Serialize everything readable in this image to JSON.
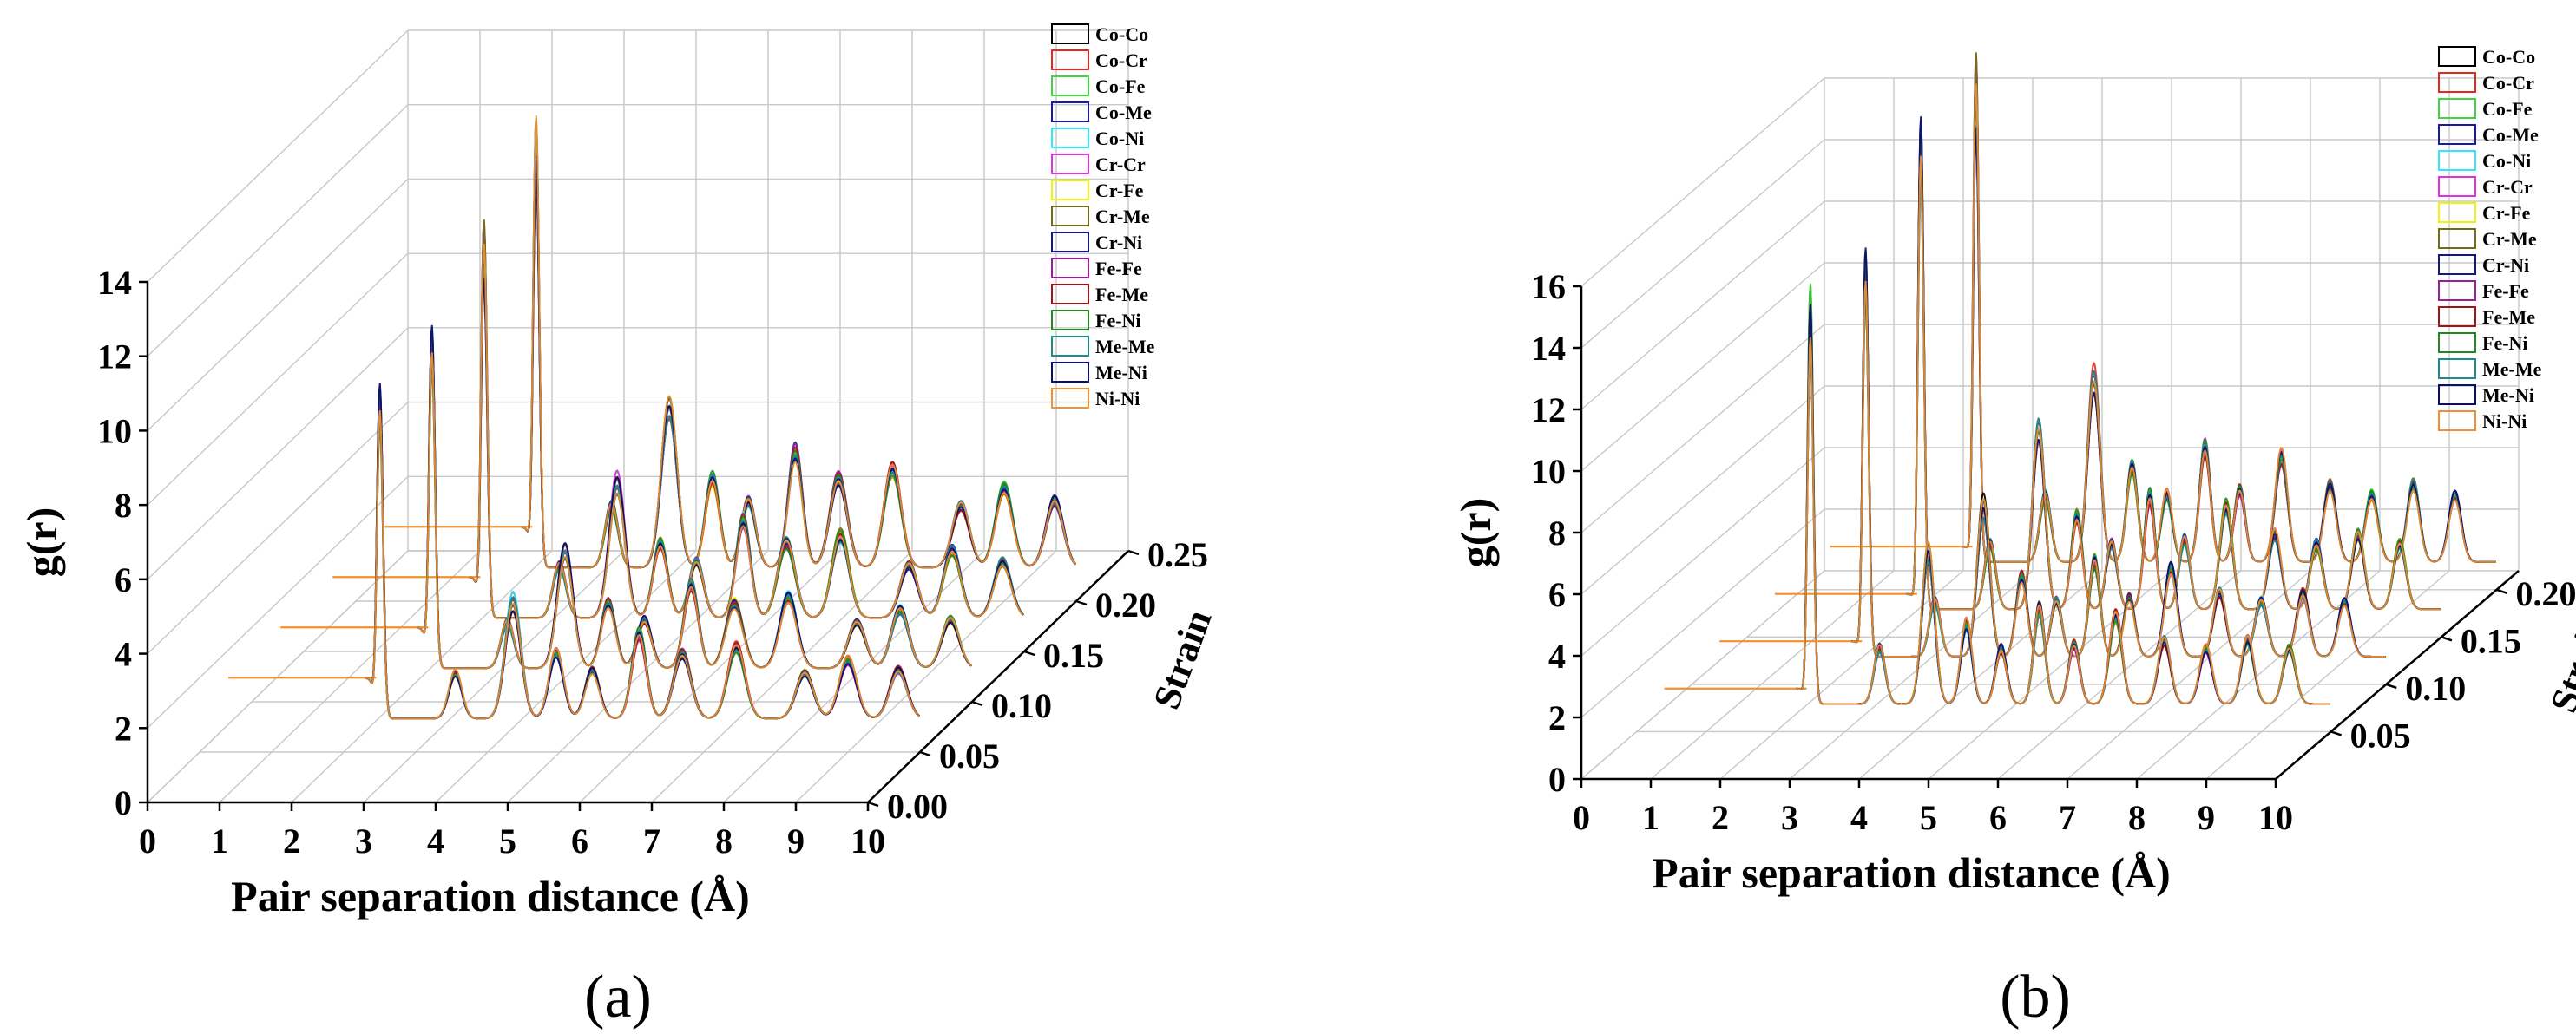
{
  "figure": {
    "captions": [
      "(a)",
      "(b)"
    ]
  },
  "chart_data": [
    {
      "type": "line",
      "subtype": "3d-waterfall",
      "title": "",
      "panel_label": "(a)",
      "xlabel": "Pair separation distance (Å)",
      "ylabel": "g(r)",
      "zlabel": "Strain",
      "xlim": [
        0,
        10
      ],
      "ylim": [
        0,
        14
      ],
      "zlim": [
        0,
        0.25
      ],
      "xticks": [
        "0",
        "1",
        "2",
        "3",
        "4",
        "5",
        "6",
        "7",
        "8",
        "9",
        "10"
      ],
      "yticks": [
        "0",
        "2",
        "4",
        "6",
        "8",
        "10",
        "12",
        "14"
      ],
      "zticks": [
        "0.00",
        "0.05",
        "0.10",
        "0.15",
        "0.20",
        "0.25"
      ],
      "strain_slices": [
        0.05,
        0.1,
        0.15,
        0.2
      ],
      "slice_peak_heights": [
        9.5,
        9.5,
        11,
        13
      ],
      "baseline_offset": 2,
      "peaks": [
        {
          "r": 2.5,
          "h": 1.0,
          "w": 0.045
        },
        {
          "r": 3.55,
          "h": 0.14,
          "w": 0.09
        },
        {
          "r": 4.35,
          "h": 0.36,
          "w": 0.11
        },
        {
          "r": 4.95,
          "h": 0.2,
          "w": 0.1
        },
        {
          "r": 5.45,
          "h": 0.15,
          "w": 0.1
        },
        {
          "r": 6.1,
          "h": 0.26,
          "w": 0.1
        },
        {
          "r": 6.7,
          "h": 0.2,
          "w": 0.12
        },
        {
          "r": 7.45,
          "h": 0.22,
          "w": 0.12
        },
        {
          "r": 8.4,
          "h": 0.14,
          "w": 0.12
        },
        {
          "r": 9.0,
          "h": 0.18,
          "w": 0.12
        },
        {
          "r": 9.7,
          "h": 0.15,
          "w": 0.12
        }
      ],
      "legend": [
        "Co-Co",
        "Co-Cr",
        "Co-Fe",
        "Co-Me",
        "Co-Ni",
        "Cr-Cr",
        "Cr-Fe",
        "Cr-Me",
        "Cr-Ni",
        "Fe-Fe",
        "Fe-Me",
        "Fe-Ni",
        "Me-Me",
        "Me-Ni",
        "Ni-Ni"
      ],
      "legend_placement": "top-right"
    },
    {
      "type": "line",
      "subtype": "3d-waterfall",
      "title": "",
      "panel_label": "(b)",
      "xlabel": "Pair separation distance (Å)",
      "ylabel": "g(r)",
      "zlabel": "Strain",
      "xlim": [
        0,
        10
      ],
      "ylim": [
        0,
        16
      ],
      "zlim": [
        0,
        0.22
      ],
      "xticks": [
        "0",
        "1",
        "2",
        "3",
        "4",
        "5",
        "6",
        "7",
        "8",
        "9",
        "10"
      ],
      "yticks": [
        "0",
        "2",
        "4",
        "6",
        "8",
        "10",
        "12",
        "14",
        "16"
      ],
      "zticks": [
        "0.05",
        "0.10",
        "0.15",
        "0.20"
      ],
      "strain_slices": [
        0.05,
        0.1,
        0.15,
        0.2
      ],
      "slice_peak_heights": [
        14,
        14,
        16.5,
        17
      ],
      "baseline_offset": 1.4,
      "peaks": [
        {
          "r": 2.5,
          "h": 1.0,
          "w": 0.045
        },
        {
          "r": 3.5,
          "h": 0.14,
          "w": 0.08
        },
        {
          "r": 4.2,
          "h": 0.38,
          "w": 0.09
        },
        {
          "r": 4.75,
          "h": 0.2,
          "w": 0.08
        },
        {
          "r": 5.25,
          "h": 0.14,
          "w": 0.08
        },
        {
          "r": 5.8,
          "h": 0.24,
          "w": 0.08
        },
        {
          "r": 6.3,
          "h": 0.15,
          "w": 0.08
        },
        {
          "r": 6.9,
          "h": 0.22,
          "w": 0.09
        },
        {
          "r": 7.6,
          "h": 0.16,
          "w": 0.09
        },
        {
          "r": 8.2,
          "h": 0.14,
          "w": 0.09
        },
        {
          "r": 8.8,
          "h": 0.16,
          "w": 0.09
        },
        {
          "r": 9.4,
          "h": 0.14,
          "w": 0.09
        }
      ],
      "legend": [
        "Co-Co",
        "Co-Cr",
        "Co-Fe",
        "Co-Me",
        "Co-Ni",
        "Cr-Cr",
        "Cr-Fe",
        "Cr-Me",
        "Cr-Ni",
        "Fe-Fe",
        "Fe-Me",
        "Fe-Ni",
        "Me-Me",
        "Me-Ni",
        "Ni-Ni"
      ],
      "legend_placement": "top-right"
    }
  ],
  "series_colors": [
    "#000000",
    "#e8281e",
    "#3fd63f",
    "#1a1aa8",
    "#33e6ff",
    "#e033e0",
    "#f2f20f",
    "#6e6e14",
    "#14148c",
    "#a01aa0",
    "#a01414",
    "#1f8a1f",
    "#1a8c8c",
    "#0b0b70",
    "#f0922d"
  ]
}
